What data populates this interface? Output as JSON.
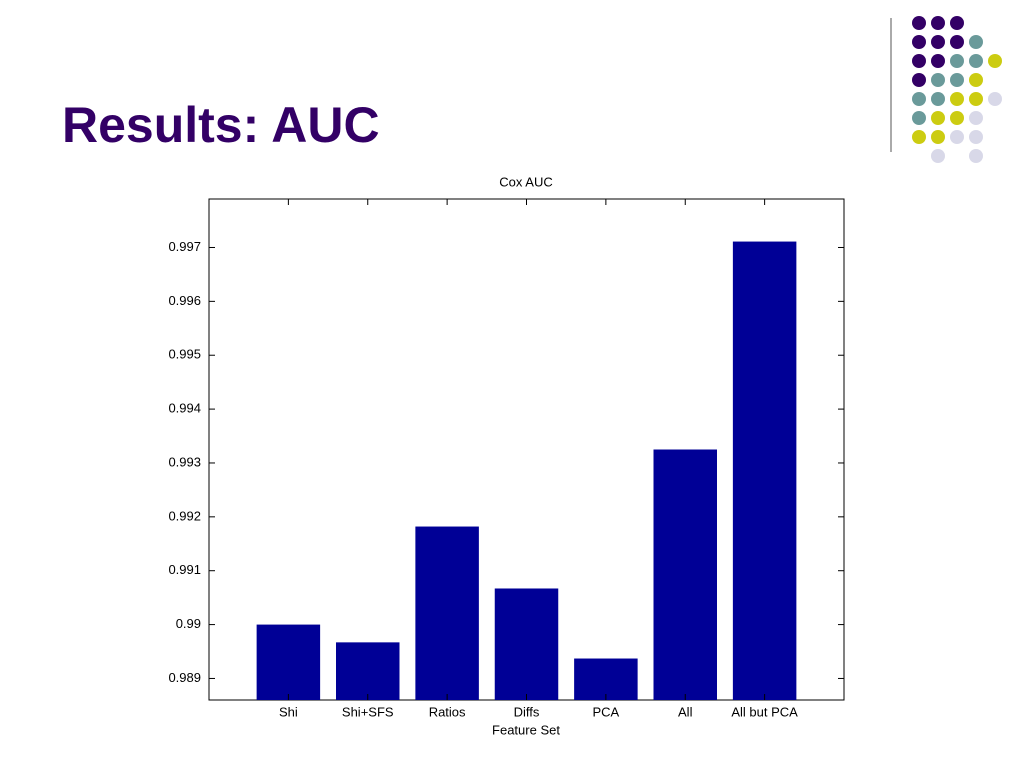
{
  "slide_title": "Results: AUC",
  "chart_data": {
    "type": "bar",
    "title": "Cox AUC",
    "x_label": "Feature Set",
    "categories": [
      "Shi",
      "Shi+SFS",
      "Ratios",
      "Diffs",
      "PCA",
      "All",
      "All but PCA"
    ],
    "values": [
      0.99,
      0.98967,
      0.99182,
      0.99067,
      0.98937,
      0.99325,
      0.99711
    ],
    "color": "#000096",
    "ylim": [
      0.9886,
      0.9979
    ],
    "yticks": [
      0.989,
      0.99,
      0.991,
      0.992,
      0.993,
      0.994,
      0.995,
      0.996,
      0.997
    ],
    "grid": false
  }
}
